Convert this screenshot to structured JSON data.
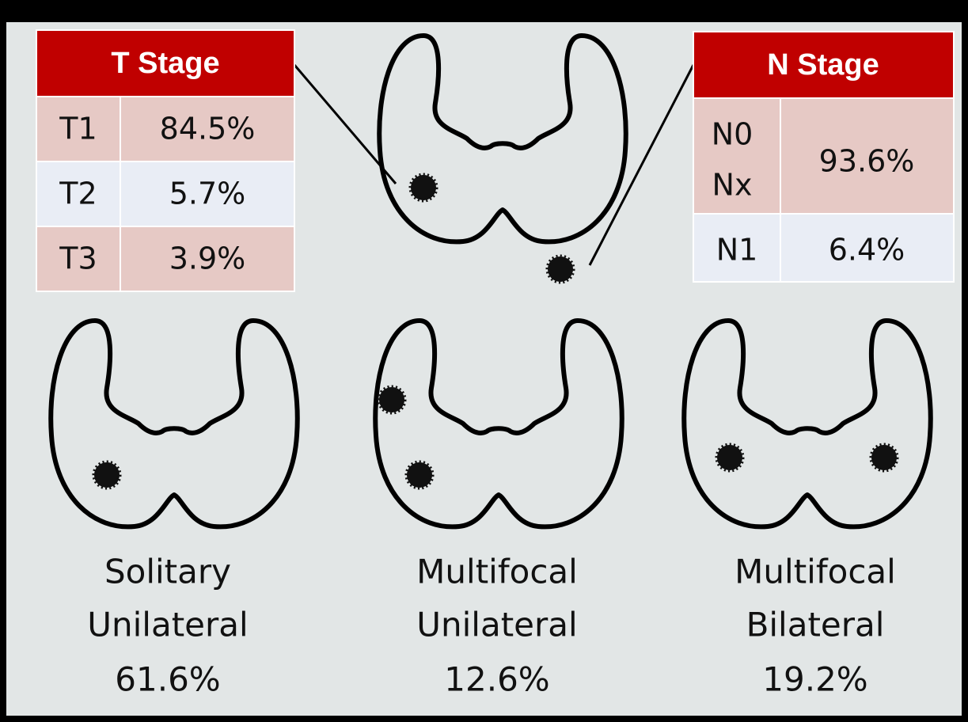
{
  "t_stage": {
    "title": "T Stage",
    "rows": [
      {
        "label": "T1",
        "value": "84.5%"
      },
      {
        "label": "T2",
        "value": "5.7%"
      },
      {
        "label": "T3",
        "value": "3.9%"
      }
    ]
  },
  "n_stage": {
    "title": "N Stage",
    "rows": [
      {
        "labels": [
          "N0",
          "Nx"
        ],
        "value": "93.6%"
      },
      {
        "labels": [
          "N1"
        ],
        "value": "6.4%"
      }
    ]
  },
  "foci": [
    {
      "lines": [
        "Solitary",
        "Unilateral"
      ],
      "value": "61.6%"
    },
    {
      "lines": [
        "Multifocal",
        "Unilateral"
      ],
      "value": "12.6%"
    },
    {
      "lines": [
        "Multifocal",
        "Bilateral"
      ],
      "value": "19.2%"
    }
  ]
}
